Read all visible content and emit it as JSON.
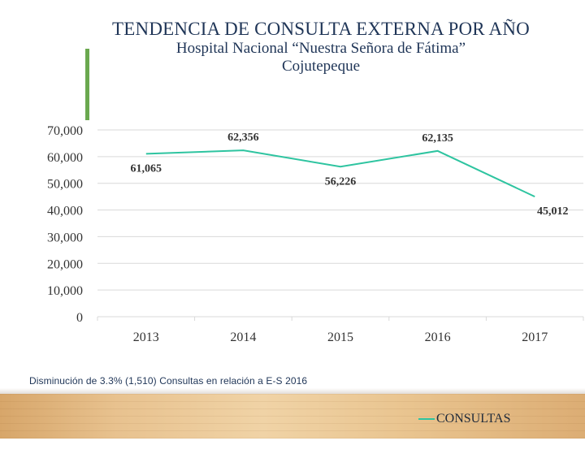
{
  "slide": {
    "title": "TENDENCIA DE CONSULTA EXTERNA POR AÑO",
    "subtitle": "Hospital Nacional “Nuestra Señora de Fátima”",
    "subtitle2": "Cojutepeque",
    "footnote": "Disminución de 3.3% (1,510) Consultas en relación a E-S 2016"
  },
  "colors": {
    "line": "#2ec4a0",
    "title": "#1f3557",
    "accent": "#6aa84f",
    "grid": "#d9d9d9"
  },
  "chart_data": {
    "type": "line",
    "categories": [
      "2013",
      "2014",
      "2015",
      "2016",
      "2017"
    ],
    "series": [
      {
        "name": "CONSULTAS",
        "values": [
          61065,
          62356,
          56226,
          62135,
          45012
        ]
      }
    ],
    "data_labels": [
      "61,065",
      "62,356",
      "56,226",
      "62,135",
      "45,012"
    ],
    "y_ticks": [
      0,
      10000,
      20000,
      30000,
      40000,
      50000,
      60000,
      70000
    ],
    "y_tick_labels": [
      "0",
      "10,000",
      "20,000",
      "30,000",
      "40,000",
      "50,000",
      "60,000",
      "70,000"
    ],
    "ylim": [
      0,
      70000
    ],
    "grid": true,
    "legend": "bottom-right",
    "xlabel": "",
    "ylabel": ""
  }
}
